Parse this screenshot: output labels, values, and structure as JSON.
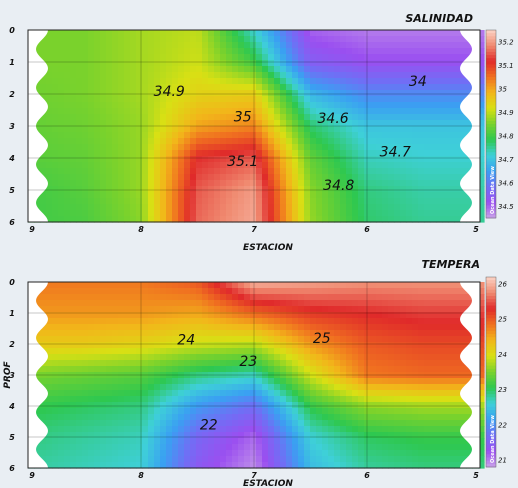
{
  "colors": {
    "background": "#e9eef3",
    "panel_background": "#ffffff",
    "palette": [
      "#c8a0e8",
      "#9a4ff0",
      "#6f6ff5",
      "#3aa0f2",
      "#3ed0d8",
      "#2ec850",
      "#7ad22c",
      "#d8e014",
      "#f2b61a",
      "#f07020",
      "#e02a2a",
      "#f08a70",
      "#fbd3c6"
    ]
  },
  "chart_data": [
    {
      "type": "contour",
      "title": "SALINIDAD",
      "xlabel": "ESTACION",
      "ylabel": "",
      "x_ticks": [
        "9",
        "8",
        "7",
        "6",
        "5"
      ],
      "y_ticks": [
        "0",
        "1",
        "2",
        "3",
        "4",
        "5",
        "6"
      ],
      "xlim": [
        9,
        5
      ],
      "ylim": [
        0,
        6
      ],
      "colorbar_ticks": [
        "35.2",
        "35.1",
        "35",
        "34.9",
        "34.8",
        "34.7",
        "34.6",
        "34.5"
      ],
      "colorbar_range": [
        34.45,
        35.25
      ],
      "watermark": "Ocean Data View",
      "grid_x": [
        9,
        8.5,
        8,
        7.5,
        7,
        6.5,
        6,
        5.5,
        5
      ],
      "grid_y": [
        0,
        1,
        2,
        3,
        4,
        5,
        6
      ],
      "grid_values": [
        [
          34.85,
          34.85,
          34.88,
          34.9,
          34.72,
          34.5,
          34.48,
          34.48,
          34.48
        ],
        [
          34.85,
          34.85,
          34.88,
          34.91,
          34.8,
          34.55,
          34.52,
          34.52,
          34.52
        ],
        [
          34.84,
          34.85,
          34.88,
          34.94,
          34.95,
          34.68,
          34.62,
          34.62,
          34.62
        ],
        [
          34.83,
          34.84,
          34.87,
          35.0,
          35.03,
          34.77,
          34.7,
          34.7,
          34.7
        ],
        [
          34.82,
          34.83,
          34.87,
          35.12,
          35.15,
          34.83,
          34.73,
          34.72,
          34.72
        ],
        [
          34.8,
          34.82,
          34.87,
          35.15,
          35.2,
          34.86,
          34.76,
          34.74,
          34.74
        ],
        [
          34.8,
          34.81,
          34.86,
          35.16,
          35.21,
          34.87,
          34.77,
          34.75,
          34.75
        ]
      ],
      "contour_labels": [
        {
          "text": "34.9",
          "x": 7.75,
          "y": 1.9
        },
        {
          "text": "35",
          "x": 7.1,
          "y": 2.7
        },
        {
          "text": "35.1",
          "x": 7.1,
          "y": 4.1
        },
        {
          "text": "34.6",
          "x": 6.3,
          "y": 2.75
        },
        {
          "text": "34.7",
          "x": 5.75,
          "y": 3.8
        },
        {
          "text": "34.8",
          "x": 6.25,
          "y": 4.85
        },
        {
          "text": "34",
          "x": 5.55,
          "y": 1.6
        }
      ]
    },
    {
      "type": "contour",
      "title": "TEMPERA",
      "xlabel": "ESTACION",
      "ylabel": "PROF",
      "x_ticks": [
        "9",
        "8",
        "7",
        "6",
        "5"
      ],
      "y_ticks": [
        "0",
        "1",
        "2",
        "3",
        "4",
        "5",
        "6"
      ],
      "xlim": [
        9,
        5
      ],
      "ylim": [
        0,
        6
      ],
      "colorbar_ticks": [
        "26",
        "25",
        "24",
        "23",
        "22",
        "21"
      ],
      "colorbar_range": [
        20.8,
        26.2
      ],
      "watermark": "Ocean Data View",
      "grid_x": [
        9,
        8.5,
        8,
        7.5,
        7,
        6.5,
        6,
        5.5,
        5
      ],
      "grid_y": [
        0,
        1,
        2,
        3,
        4,
        5,
        6
      ],
      "grid_values": [
        [
          24.8,
          24.8,
          24.8,
          25.0,
          26.0,
          25.9,
          25.8,
          25.8,
          25.8
        ],
        [
          24.6,
          24.6,
          24.6,
          24.5,
          24.9,
          25.2,
          25.3,
          25.4,
          25.4
        ],
        [
          24.2,
          24.2,
          24.1,
          23.9,
          23.8,
          24.6,
          25.0,
          25.1,
          25.1
        ],
        [
          23.5,
          23.4,
          23.3,
          22.9,
          22.7,
          23.9,
          24.8,
          24.9,
          24.9
        ],
        [
          23.1,
          23.0,
          22.9,
          22.1,
          21.7,
          23.1,
          23.6,
          23.7,
          23.7
        ],
        [
          22.9,
          22.8,
          22.7,
          21.6,
          21.1,
          22.6,
          23.0,
          23.1,
          23.1
        ],
        [
          22.8,
          22.7,
          22.6,
          21.4,
          20.9,
          22.4,
          22.8,
          22.9,
          22.9
        ]
      ],
      "contour_labels": [
        {
          "text": "24",
          "x": 7.6,
          "y": 1.85
        },
        {
          "text": "25",
          "x": 6.4,
          "y": 1.8
        },
        {
          "text": "23",
          "x": 7.05,
          "y": 2.55
        },
        {
          "text": "22",
          "x": 7.4,
          "y": 4.6
        }
      ]
    }
  ]
}
